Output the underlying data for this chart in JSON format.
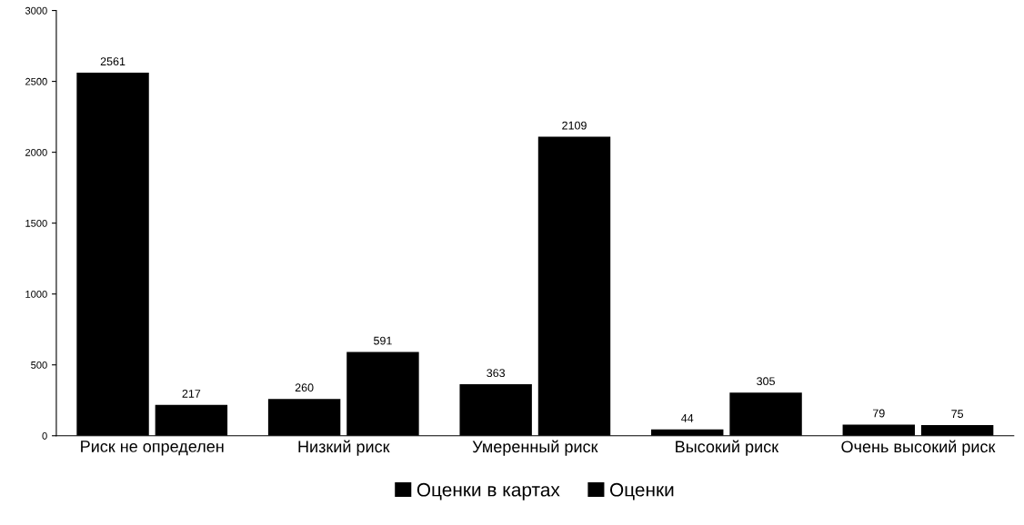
{
  "chart_data": {
    "type": "bar",
    "categories": [
      "Риск не определен",
      "Низкий риск",
      "Умеренный риск",
      "Высокий риск",
      "Очень высокий риск"
    ],
    "series": [
      {
        "name": "Оценки в картах",
        "color": "#000000",
        "values": [
          2561,
          260,
          363,
          44,
          79
        ]
      },
      {
        "name": "Оценки",
        "color": "#000000",
        "values": [
          217,
          591,
          2109,
          305,
          75
        ]
      }
    ],
    "ylim": [
      0,
      3000
    ],
    "yticks": [
      0,
      500,
      1000,
      1500,
      2000,
      2500,
      3000
    ],
    "data_labels": true,
    "grid": false,
    "legend": "bottom"
  }
}
